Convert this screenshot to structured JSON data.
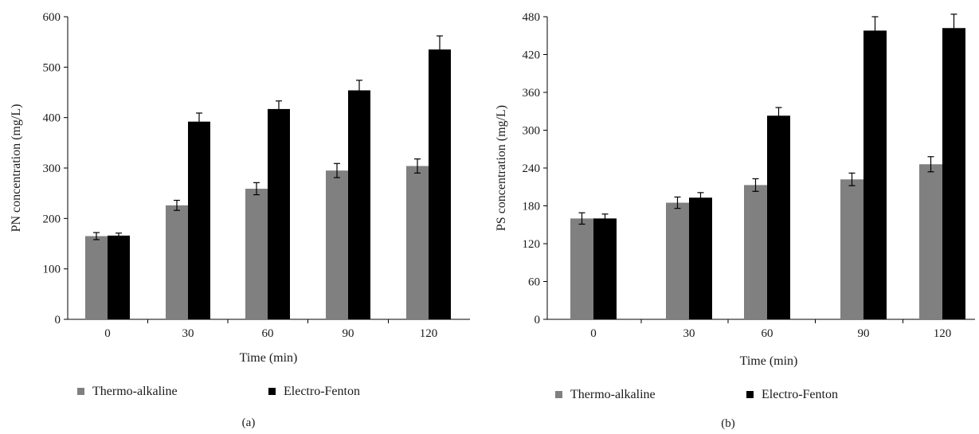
{
  "charts": [
    {
      "type": "bar",
      "panel_label": "(a)",
      "xlabel": "Time (min)",
      "ylabel": "PN concentration (mg/L)",
      "categories": [
        "0",
        "30",
        "60",
        "90",
        "120"
      ],
      "ylim": [
        0,
        600
      ],
      "yticks": [
        "0",
        "100",
        "200",
        "300",
        "400",
        "500",
        "600"
      ],
      "grid": false,
      "legend_position": "bottom",
      "series": [
        {
          "name": "Thermo-alkaline",
          "color": "#808080",
          "values": [
            165,
            226,
            259,
            295,
            304
          ],
          "errors": [
            7,
            10,
            12,
            14,
            14
          ]
        },
        {
          "name": "Electro-Fenton",
          "color": "#000000",
          "values": [
            166,
            392,
            417,
            454,
            535
          ],
          "errors": [
            5,
            17,
            16,
            20,
            27
          ]
        }
      ]
    },
    {
      "type": "bar",
      "panel_label": "(b)",
      "xlabel": "Time (min)",
      "ylabel": "PS concentration (mg/L)",
      "categories": [
        "0",
        "30",
        "60",
        "90",
        "120"
      ],
      "ylim": [
        0,
        480
      ],
      "yticks": [
        "0",
        "60",
        "120",
        "180",
        "240",
        "300",
        "360",
        "420",
        "480"
      ],
      "grid": false,
      "legend_position": "bottom",
      "series": [
        {
          "name": "Thermo-alkaline",
          "color": "#808080",
          "values": [
            160,
            185,
            213,
            222,
            246
          ],
          "errors": [
            9,
            9,
            10,
            10,
            12
          ]
        },
        {
          "name": "Electro-Fenton",
          "color": "#000000",
          "values": [
            160,
            193,
            323,
            458,
            462
          ],
          "errors": [
            7,
            8,
            13,
            22,
            22
          ]
        }
      ]
    }
  ]
}
